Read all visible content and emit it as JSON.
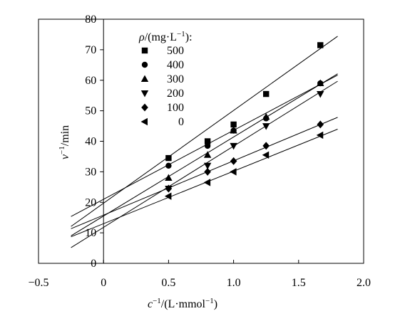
{
  "chart_data": {
    "type": "scatter",
    "xlabel_parts": [
      "c",
      "−1",
      "/(L·mmol",
      "−1",
      ")"
    ],
    "ylabel_parts": [
      "v",
      "−1",
      "/min"
    ],
    "xlim": [
      -0.5,
      2.0
    ],
    "ylim": [
      0,
      80
    ],
    "x_ticks": [
      -0.5,
      0,
      0.5,
      1.0,
      1.5,
      2.0
    ],
    "x_tick_labels": [
      "−0.5",
      "0",
      "0.5",
      "1.0",
      "1.5",
      "2.0"
    ],
    "y_ticks": [
      0,
      10,
      20,
      30,
      40,
      50,
      60,
      70,
      80
    ],
    "y_tick_labels": [
      "0",
      "10",
      "20",
      "30",
      "40",
      "50",
      "60",
      "70",
      "80"
    ],
    "legend_title_parts": [
      "ρ",
      "/(mg·L",
      "−1",
      "):"
    ],
    "legend_placement": "top-left",
    "grid": false,
    "x": [
      0.5,
      0.8,
      1.0,
      1.25,
      1.667
    ],
    "series": [
      {
        "name": "500",
        "marker": "square",
        "values": [
          34.5,
          40.0,
          45.5,
          55.5,
          71.5
        ],
        "fit": {
          "slope": 30.4,
          "intercept": 19.7
        }
      },
      {
        "name": "400",
        "marker": "circle",
        "values": [
          32.0,
          38.5,
          43.5,
          47.5,
          59.0
        ],
        "fit": {
          "slope": 22.6,
          "intercept": 21.0
        }
      },
      {
        "name": "300",
        "marker": "triangle-up",
        "values": [
          28.0,
          35.5,
          43.5,
          48.0,
          59.0
        ],
        "fit": {
          "slope": 25.9,
          "intercept": 15.5
        }
      },
      {
        "name": "200",
        "marker": "triangle-down",
        "values": [
          24.5,
          32.0,
          38.5,
          45.0,
          55.5
        ],
        "fit": {
          "slope": 26.6,
          "intercept": 11.8
        }
      },
      {
        "name": "100",
        "marker": "diamond",
        "values": [
          24.5,
          30.0,
          33.5,
          38.5,
          45.5
        ],
        "fit": {
          "slope": 17.8,
          "intercept": 15.8
        }
      },
      {
        "name": "0",
        "marker": "triangle-left",
        "values": [
          22.0,
          26.5,
          30.0,
          35.5,
          42.0
        ],
        "fit": {
          "slope": 17.2,
          "intercept": 13.0
        }
      }
    ]
  }
}
